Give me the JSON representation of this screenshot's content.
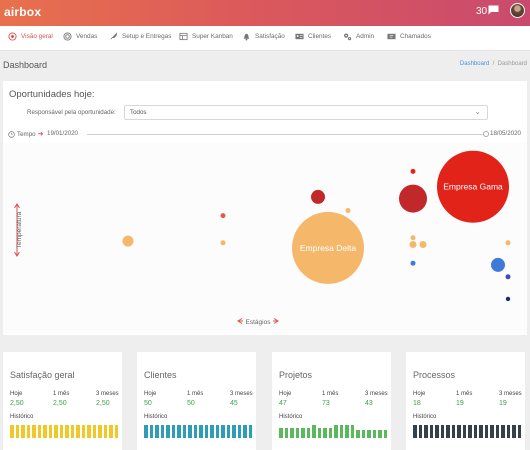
{
  "app": {
    "logo": "airbox",
    "notification_count": "30"
  },
  "nav": {
    "items": [
      {
        "label": "Visão geral",
        "icon": "eye-icon"
      },
      {
        "label": "Vendas",
        "icon": "target-icon"
      },
      {
        "label": "Setup e Entregas",
        "icon": "rocket-icon"
      },
      {
        "label": "Super Kanban",
        "icon": "kanban-icon"
      },
      {
        "label": "Satisfação",
        "icon": "bell-icon"
      },
      {
        "label": "Clientes",
        "icon": "id-card-icon"
      },
      {
        "label": "Admin",
        "icon": "gears-icon"
      },
      {
        "label": "Chamados",
        "icon": "ticket-icon"
      }
    ]
  },
  "page": {
    "title": "Dashboard",
    "breadcrumb": [
      "Dashboard",
      "Dashboard"
    ]
  },
  "opportunities": {
    "title": "Oportunidades hoje:",
    "responsible_label": "Responsável pela oportunidade:",
    "responsible_value": "Todos",
    "time_label": "Tempo",
    "start_date": "19/01/2020",
    "end_date": "18/05/2020",
    "y_axis_label": "Temperatura",
    "x_axis_label": "Estágios"
  },
  "chart_data": {
    "type": "scatter",
    "xlabel": "Estágios",
    "ylabel": "Temperatura",
    "grid": false,
    "legend": "none",
    "bubbles": [
      {
        "label": "Empresa Delta",
        "x": 0.61,
        "y": 0.43,
        "r": 36,
        "color": "#f5b86b"
      },
      {
        "label": "Empresa Gama",
        "x": 0.9,
        "y": 0.79,
        "r": 36,
        "color": "#e2231a"
      },
      {
        "label": "",
        "x": 0.78,
        "y": 0.72,
        "r": 14,
        "color": "#c0282a"
      },
      {
        "label": "",
        "x": 0.59,
        "y": 0.73,
        "r": 7,
        "color": "#c0282a"
      },
      {
        "label": "",
        "x": 0.78,
        "y": 0.88,
        "r": 2.5,
        "color": "#e2231a"
      },
      {
        "label": "",
        "x": 0.4,
        "y": 0.62,
        "r": 2.5,
        "color": "#e05a4e"
      },
      {
        "label": "",
        "x": 0.65,
        "y": 0.65,
        "r": 2.5,
        "color": "#f5b86b"
      },
      {
        "label": "",
        "x": 0.21,
        "y": 0.47,
        "r": 5.5,
        "color": "#f5b86b"
      },
      {
        "label": "",
        "x": 0.4,
        "y": 0.46,
        "r": 2.5,
        "color": "#f5b86b"
      },
      {
        "label": "",
        "x": 0.78,
        "y": 0.49,
        "r": 2.5,
        "color": "#f5b86b"
      },
      {
        "label": "",
        "x": 0.78,
        "y": 0.45,
        "r": 3.5,
        "color": "#f5b86b"
      },
      {
        "label": "",
        "x": 0.8,
        "y": 0.45,
        "r": 3.5,
        "color": "#f5b86b"
      },
      {
        "label": "",
        "x": 0.97,
        "y": 0.46,
        "r": 2.5,
        "color": "#f5b86b"
      },
      {
        "label": "",
        "x": 0.78,
        "y": 0.34,
        "r": 2.5,
        "color": "#3f7ad8"
      },
      {
        "label": "",
        "x": 0.95,
        "y": 0.33,
        "r": 7,
        "color": "#3f7ad8"
      },
      {
        "label": "",
        "x": 0.97,
        "y": 0.26,
        "r": 2.5,
        "color": "#3f4fb8"
      },
      {
        "label": "",
        "x": 0.97,
        "y": 0.13,
        "r": 2.2,
        "color": "#1e2a6e"
      }
    ]
  },
  "cards": [
    {
      "title": "Satisfação geral",
      "cols": [
        {
          "label": "Hoje",
          "value": "2,50"
        },
        {
          "label": "1 mês",
          "value": "2,50"
        },
        {
          "label": "3 meses",
          "value": "2,50"
        }
      ],
      "history_label": "Histórico",
      "color": "#f0c828",
      "value_color": "#3fa34d",
      "history": [
        1,
        1,
        1,
        1,
        1,
        1,
        1,
        1,
        1,
        1,
        1,
        1,
        1,
        1,
        1,
        1,
        1,
        1,
        1,
        1
      ]
    },
    {
      "title": "Clientes",
      "cols": [
        {
          "label": "Hoje",
          "value": "50"
        },
        {
          "label": "1 mês",
          "value": "50"
        },
        {
          "label": "3 meses",
          "value": "45"
        }
      ],
      "history_label": "Histórico",
      "color": "#2e9db5",
      "value_color": "#3fa34d",
      "history": [
        1,
        1,
        1,
        1,
        1,
        1,
        1,
        1,
        1,
        1,
        1,
        1,
        1,
        1,
        1,
        1,
        1,
        1,
        1,
        1
      ]
    },
    {
      "title": "Projetos",
      "cols": [
        {
          "label": "Hoje",
          "value": "47"
        },
        {
          "label": "1 mês",
          "value": "73"
        },
        {
          "label": "3 meses",
          "value": "43"
        }
      ],
      "history_label": "Histórico",
      "color": "#5cb85c",
      "value_color": "#3fa34d",
      "history": [
        0.8,
        0.8,
        0.8,
        0.8,
        0.8,
        0.8,
        1,
        0.8,
        0.8,
        0.8,
        1,
        1,
        1,
        1,
        0.6,
        0.6,
        0.6,
        0.6,
        0.6,
        0.6
      ]
    },
    {
      "title": "Processos",
      "cols": [
        {
          "label": "Hoje",
          "value": "18"
        },
        {
          "label": "1 mês",
          "value": "19"
        },
        {
          "label": "3 meses",
          "value": "19"
        }
      ],
      "history_label": "Histórico",
      "color": "#34404a",
      "value_color": "#3fa34d",
      "history": [
        1,
        1,
        1,
        1,
        1,
        1,
        1,
        1,
        1,
        1,
        1,
        1,
        1,
        1,
        1,
        1,
        1,
        1,
        1,
        1
      ]
    }
  ]
}
